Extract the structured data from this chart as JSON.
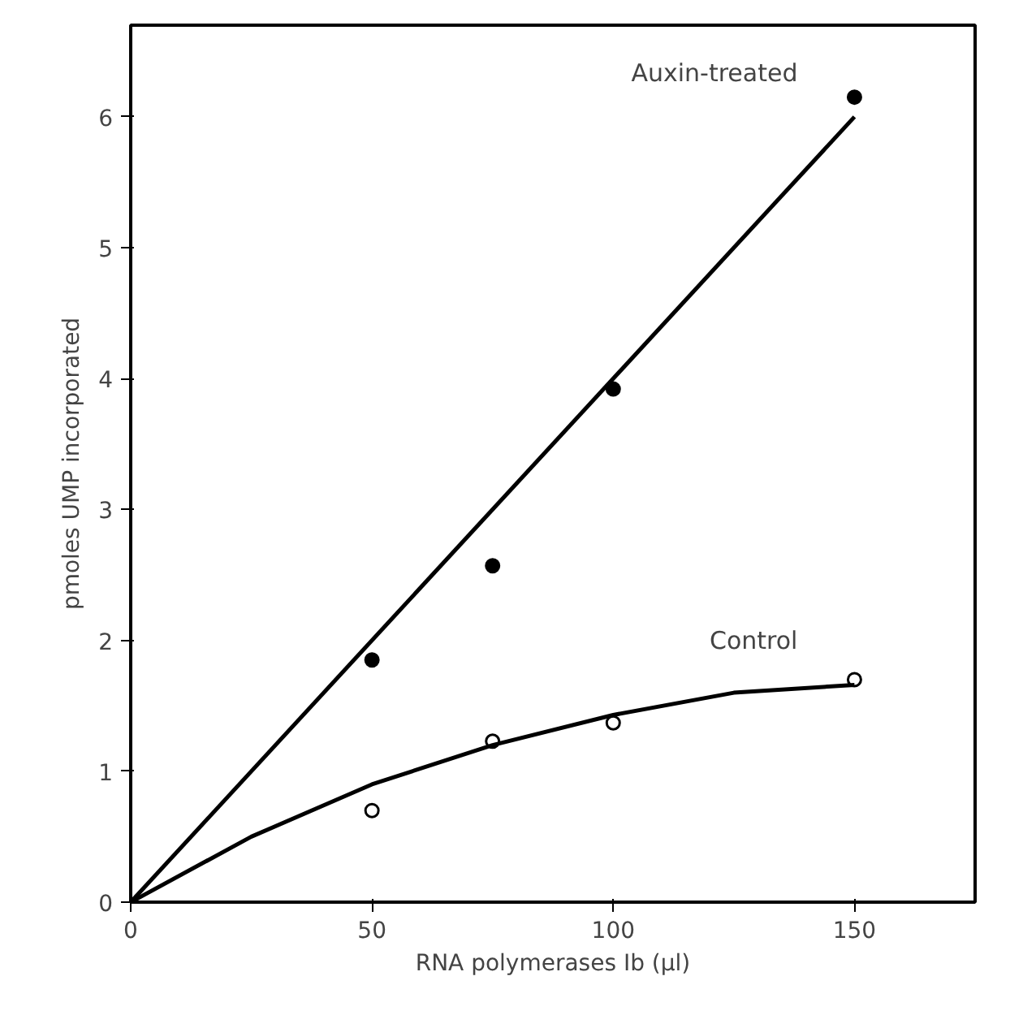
{
  "chart_data": {
    "type": "scatter",
    "xlabel": "RNA polymerases Ib (µl)",
    "ylabel": "pmoles UMP incorporated",
    "xlim": [
      0,
      175
    ],
    "ylim": [
      0,
      6.7
    ],
    "xticks": [
      0,
      50,
      100,
      150
    ],
    "yticks": [
      0,
      1,
      2,
      3,
      4,
      5,
      6
    ],
    "grid": false,
    "legend": false,
    "series": [
      {
        "marker": "circle",
        "color": "#000000",
        "x": [
          50,
          75,
          100,
          150
        ],
        "values": [
          1.85,
          2.57,
          3.92,
          6.15
        ]
      },
      {
        "marker": "circle",
        "color": "#ffffff",
        "x": [
          50,
          75,
          100,
          150
        ],
        "values": [
          0.7,
          1.23,
          1.37,
          1.7
        ]
      },
      {
        "type": "line",
        "marker": "none",
        "name": "Auxin-treated",
        "color": "#000000",
        "x": [
          0,
          150
        ],
        "values": [
          0,
          6.0
        ]
      },
      {
        "type": "line",
        "marker": "none",
        "name": "Control",
        "color": "#000000",
        "x": [
          0,
          25,
          50,
          75,
          100,
          125,
          150
        ],
        "values": [
          0,
          0.5,
          0.9,
          1.2,
          1.43,
          1.6,
          1.66
        ]
      }
    ]
  }
}
